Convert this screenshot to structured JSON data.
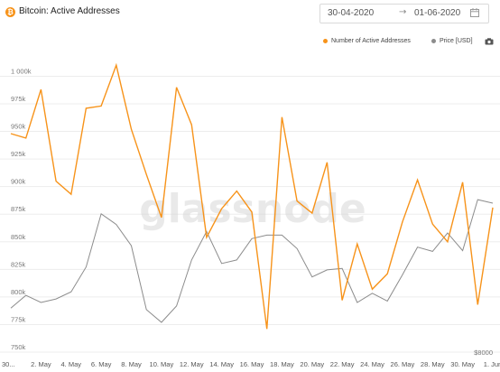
{
  "header": {
    "icon_glyph": "₿",
    "title": "Bitcoin: Active Addresses"
  },
  "date_range": {
    "start": "30-04-2020",
    "arrow": "→",
    "end": "01-06-2020"
  },
  "watermark": "glassnode",
  "colors": {
    "addresses": "#f7931a",
    "price": "#8c8c8c",
    "grid": "#ededed"
  },
  "chart_data": {
    "type": "line",
    "series": [
      {
        "name": "Number of Active Addresses",
        "color": "#f7931a",
        "values": [
          948,
          944,
          988,
          905,
          893,
          971,
          973,
          1010,
          952,
          911,
          872,
          990,
          956,
          854,
          880,
          896,
          877,
          771,
          963,
          887,
          876,
          922,
          797,
          848,
          807,
          821,
          868,
          906,
          866,
          850,
          904,
          793,
          881
        ]
      },
      {
        "name": "Price [USD]",
        "color": "#8c8c8c",
        "values": [
          8620,
          8800,
          8700,
          8750,
          8850,
          9200,
          9950,
          9800,
          9500,
          8600,
          8420,
          8650,
          9300,
          9700,
          9250,
          9300,
          9600,
          9650,
          9650,
          9460,
          9060,
          9160,
          9180,
          8700,
          8830,
          8720,
          9090,
          9480,
          9420,
          9680,
          9430,
          10150,
          10100
        ]
      }
    ],
    "y_left": {
      "ylim": [
        750,
        1020
      ],
      "ticks": [
        "750k",
        "775k",
        "800k",
        "825k",
        "850k",
        "875k",
        "900k",
        "925k",
        "950k",
        "975k",
        "1 000k"
      ]
    },
    "y_right": {
      "ylim": [
        8000,
        12200
      ],
      "tick_label": "$8000"
    },
    "x_tick_labels": [
      "30...",
      "2. May",
      "4. May",
      "6. May",
      "8. May",
      "10. May",
      "12. May",
      "14. May",
      "16. May",
      "18. May",
      "20. May",
      "22. May",
      "24. May",
      "26. May",
      "28. May",
      "30. May",
      "1. Jun"
    ],
    "grid": true,
    "legend_position": "top-right"
  }
}
